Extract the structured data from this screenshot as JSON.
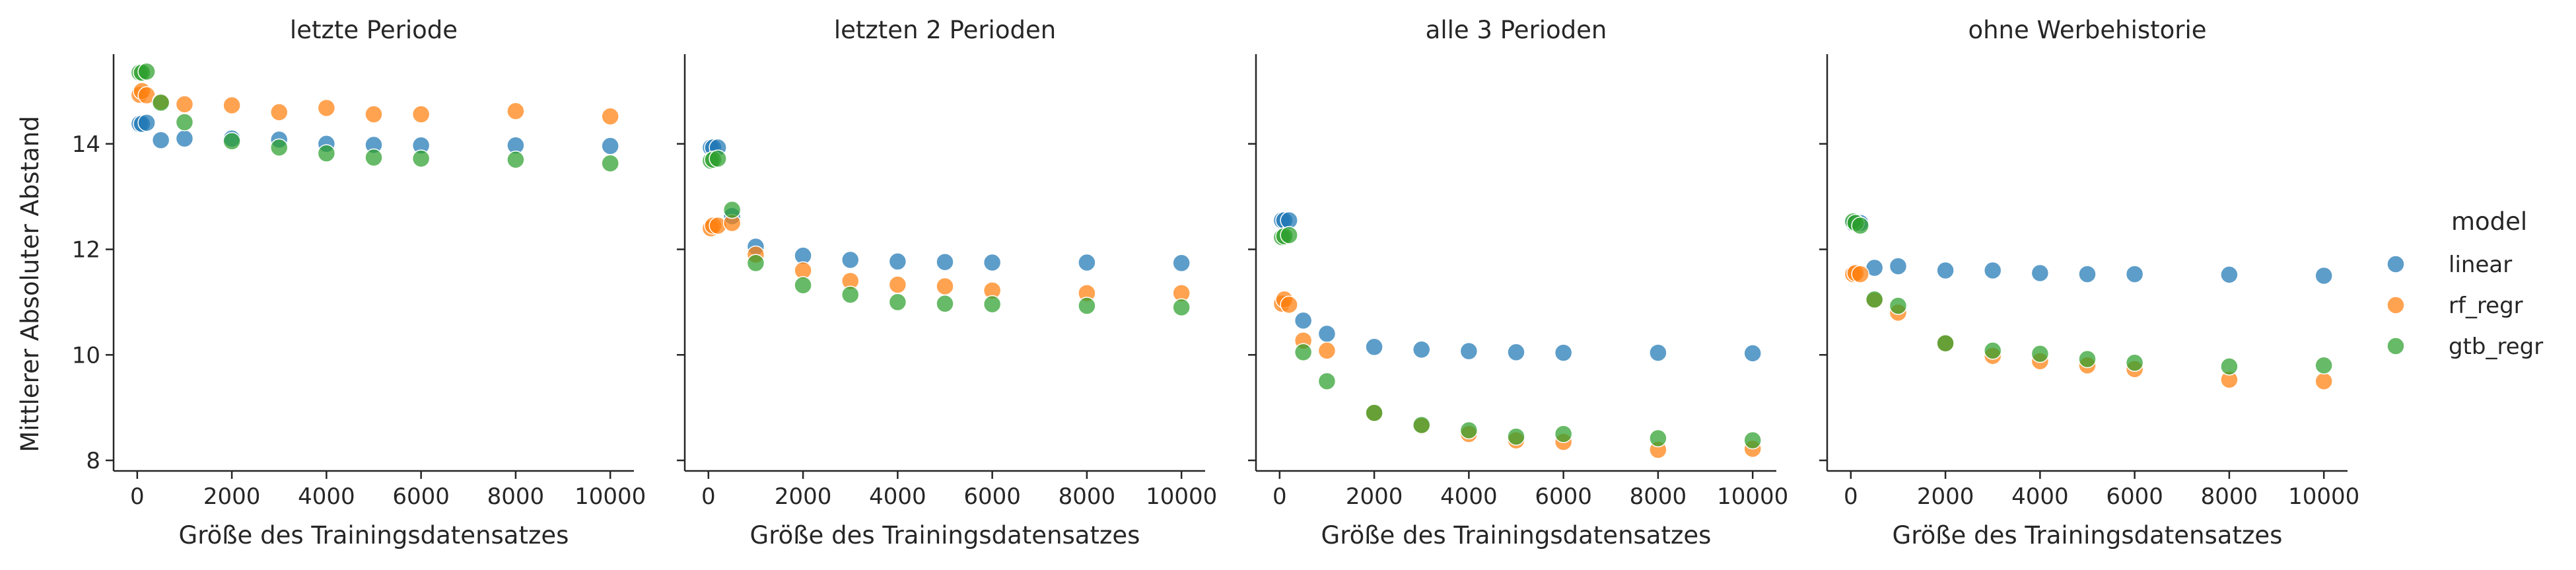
{
  "chart_data": {
    "type": "scatter",
    "ylabel": "Mittlerer Absoluter Abstand",
    "xlabel": "Größe des Trainingsdatensatzes",
    "ylim": [
      7.8,
      15.7
    ],
    "yticks": [
      8,
      10,
      12,
      14
    ],
    "xlim": [
      -500,
      10500
    ],
    "xticks": [
      0,
      2000,
      4000,
      6000,
      8000,
      10000
    ],
    "legend": {
      "title": "model",
      "placement": "right",
      "entries": [
        {
          "name": "linear",
          "color": "#1f77b4"
        },
        {
          "name": "rf_regr",
          "color": "#ff7f0e"
        },
        {
          "name": "gtb_regr",
          "color": "#2ca02c"
        }
      ]
    },
    "panels": [
      {
        "title": "letzte Periode",
        "series": [
          {
            "name": "linear",
            "x": [
              50,
              100,
              200,
              500,
              1000,
              2000,
              3000,
              4000,
              5000,
              6000,
              8000,
              10000
            ],
            "y": [
              14.38,
              14.38,
              14.4,
              14.07,
              14.1,
              14.1,
              14.08,
              14.0,
              13.98,
              13.97,
              13.97,
              13.96
            ]
          },
          {
            "name": "rf_regr",
            "x": [
              50,
              100,
              200,
              500,
              1000,
              2000,
              3000,
              4000,
              5000,
              6000,
              8000,
              10000
            ],
            "y": [
              14.93,
              15.0,
              14.92,
              14.8,
              14.75,
              14.73,
              14.6,
              14.68,
              14.56,
              14.56,
              14.62,
              14.52
            ]
          },
          {
            "name": "gtb_regr",
            "x": [
              50,
              100,
              200,
              500,
              1000,
              2000,
              3000,
              4000,
              5000,
              6000,
              8000,
              10000
            ],
            "y": [
              15.35,
              15.35,
              15.37,
              14.78,
              14.41,
              14.05,
              13.93,
              13.82,
              13.74,
              13.72,
              13.7,
              13.63
            ]
          }
        ]
      },
      {
        "title": "letzten 2 Perioden",
        "series": [
          {
            "name": "linear",
            "x": [
              50,
              100,
              200,
              500,
              1000,
              2000,
              3000,
              4000,
              5000,
              6000,
              8000,
              10000
            ],
            "y": [
              13.93,
              13.93,
              13.93,
              12.63,
              12.05,
              11.88,
              11.8,
              11.77,
              11.76,
              11.75,
              11.75,
              11.74
            ]
          },
          {
            "name": "rf_regr",
            "x": [
              50,
              100,
              200,
              500,
              1000,
              2000,
              3000,
              4000,
              5000,
              6000,
              8000,
              10000
            ],
            "y": [
              12.4,
              12.45,
              12.45,
              12.5,
              11.9,
              11.6,
              11.4,
              11.33,
              11.3,
              11.22,
              11.17,
              11.17
            ]
          },
          {
            "name": "gtb_regr",
            "x": [
              50,
              100,
              200,
              500,
              1000,
              2000,
              3000,
              4000,
              5000,
              6000,
              8000,
              10000
            ],
            "y": [
              13.68,
              13.7,
              13.72,
              12.75,
              11.74,
              11.32,
              11.14,
              11.0,
              10.97,
              10.96,
              10.93,
              10.9
            ]
          }
        ]
      },
      {
        "title": "alle 3 Perioden",
        "series": [
          {
            "name": "linear",
            "x": [
              50,
              100,
              200,
              500,
              1000,
              2000,
              3000,
              4000,
              5000,
              6000,
              8000,
              10000
            ],
            "y": [
              12.55,
              12.55,
              12.55,
              10.65,
              10.4,
              10.15,
              10.1,
              10.07,
              10.05,
              10.04,
              10.04,
              10.03
            ]
          },
          {
            "name": "rf_regr",
            "x": [
              50,
              100,
              200,
              500,
              1000,
              2000,
              3000,
              4000,
              5000,
              6000,
              8000,
              10000
            ],
            "y": [
              10.97,
              11.05,
              10.95,
              10.27,
              10.08,
              8.9,
              8.65,
              8.5,
              8.38,
              8.35,
              8.2,
              8.22
            ]
          },
          {
            "name": "gtb_regr",
            "x": [
              50,
              100,
              200,
              500,
              1000,
              2000,
              3000,
              4000,
              5000,
              6000,
              8000,
              10000
            ],
            "y": [
              12.23,
              12.25,
              12.27,
              10.05,
              9.5,
              8.9,
              8.67,
              8.57,
              8.45,
              8.5,
              8.42,
              8.38
            ]
          }
        ]
      },
      {
        "title": "ohne Werbehistorie",
        "series": [
          {
            "name": "linear",
            "x": [
              50,
              100,
              200,
              500,
              1000,
              2000,
              3000,
              4000,
              5000,
              6000,
              8000,
              10000
            ],
            "y": [
              12.5,
              12.52,
              12.5,
              11.65,
              11.68,
              11.6,
              11.6,
              11.55,
              11.53,
              11.53,
              11.52,
              11.5
            ]
          },
          {
            "name": "rf_regr",
            "x": [
              50,
              100,
              200,
              500,
              1000,
              2000,
              3000,
              4000,
              5000,
              6000,
              8000,
              10000
            ],
            "y": [
              11.53,
              11.55,
              11.53,
              11.03,
              10.8,
              10.22,
              9.98,
              9.88,
              9.8,
              9.73,
              9.53,
              9.5
            ]
          },
          {
            "name": "gtb_regr",
            "x": [
              50,
              100,
              200,
              500,
              1000,
              2000,
              3000,
              4000,
              5000,
              6000,
              8000,
              10000
            ],
            "y": [
              12.53,
              12.5,
              12.45,
              11.05,
              10.93,
              10.22,
              10.08,
              10.02,
              9.92,
              9.85,
              9.78,
              9.8
            ]
          }
        ]
      }
    ]
  }
}
